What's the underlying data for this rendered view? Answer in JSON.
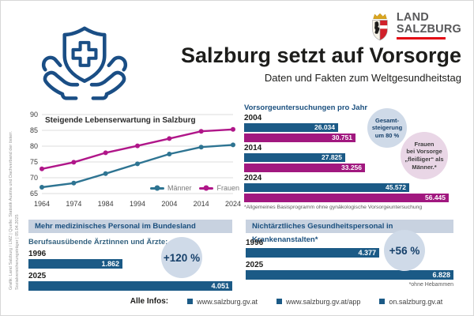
{
  "header": {
    "logo": {
      "line1": "LAND",
      "line2": "SALZBURG"
    },
    "title": "Salzburg setzt auf Vorsorge",
    "subtitle": "Daten und Fakten zum Weltgesundheitstag"
  },
  "credit": "Grafik: Land Salzburg / LMZ | Quelle: Statistik Austria und Dachverband der österr. Sozialversicherungsträger | 05.04.2025",
  "colors": {
    "blue_bar": "#1b5a86",
    "magenta_bar": "#a1187f",
    "men_line": "#2e7492",
    "women_line": "#b01689",
    "header_blue": "#1a4f7e",
    "section_header_bg": "#c8d2e0",
    "callout_blue_bg": "#cfdae8",
    "callout_pink_bg": "#e9d6e6",
    "logo_red": "#e30613"
  },
  "chart_data": [
    {
      "type": "line",
      "title": "Steigende Lebenserwartung in Salzburg",
      "x": [
        1964,
        1974,
        1984,
        1994,
        2004,
        2014,
        2024
      ],
      "series": [
        {
          "name": "Männer",
          "color": "#2e7492",
          "values": [
            67.0,
            68.3,
            71.3,
            74.4,
            77.5,
            79.7,
            80.4
          ]
        },
        {
          "name": "Frauen",
          "color": "#b01689",
          "values": [
            72.8,
            74.9,
            77.9,
            80.1,
            82.4,
            84.7,
            85.3
          ]
        }
      ],
      "ylim": [
        65,
        90
      ],
      "yticks": [
        65,
        70,
        75,
        80,
        85,
        90
      ],
      "grid": true,
      "legend_position": "bottom-right"
    },
    {
      "type": "bar",
      "title": "Vorsorgeuntersuchungen pro Jahr",
      "categories": [
        "2004",
        "2014",
        "2024"
      ],
      "series": [
        {
          "name": "Männer",
          "color": "#1b5a86",
          "values": [
            26034,
            27825,
            45572
          ],
          "labels": [
            "26.034",
            "27.825",
            "45.572"
          ]
        },
        {
          "name": "Frauen",
          "color": "#a1187f",
          "values": [
            30751,
            33256,
            56445
          ],
          "labels": [
            "30.751",
            "33.256",
            "56.445"
          ]
        }
      ],
      "max_value": 56445,
      "footnote": "*Allgemeines Basisprogramm ohne gynäkologische Vorsorgeuntersuchung",
      "callouts": [
        {
          "name": "gesamtsteigerung",
          "text": "Gesamt-\nsteigerung\num 80 %"
        },
        {
          "name": "frauen-fleissiger",
          "text": "Frauen\nbei Vorsorge\n„fleißiger“ als\nMänner.*"
        }
      ]
    },
    {
      "type": "bar",
      "title": "Mehr medizinisches Personal im Bundesland",
      "subtitle": "Berufsausübende Ärztinnen und Ärzte:",
      "categories": [
        "1996",
        "2025"
      ],
      "values": [
        1862,
        4051
      ],
      "labels": [
        "1.862",
        "4.051"
      ],
      "badge": "+120 %"
    },
    {
      "type": "bar",
      "title": "Nichtärztliches Gesundheitspersonal in Krankenanstalten*",
      "categories": [
        "1996",
        "2025"
      ],
      "values": [
        4377,
        6828
      ],
      "labels": [
        "4.377",
        "6.828"
      ],
      "badge": "+56 %",
      "footnote": "*ohne Hebammen"
    }
  ],
  "footer": {
    "label": "Alle Infos:",
    "links": [
      "www.salzburg.gv.at",
      "www.salzburg.gv.at/app",
      "on.salzburg.gv.at"
    ]
  }
}
